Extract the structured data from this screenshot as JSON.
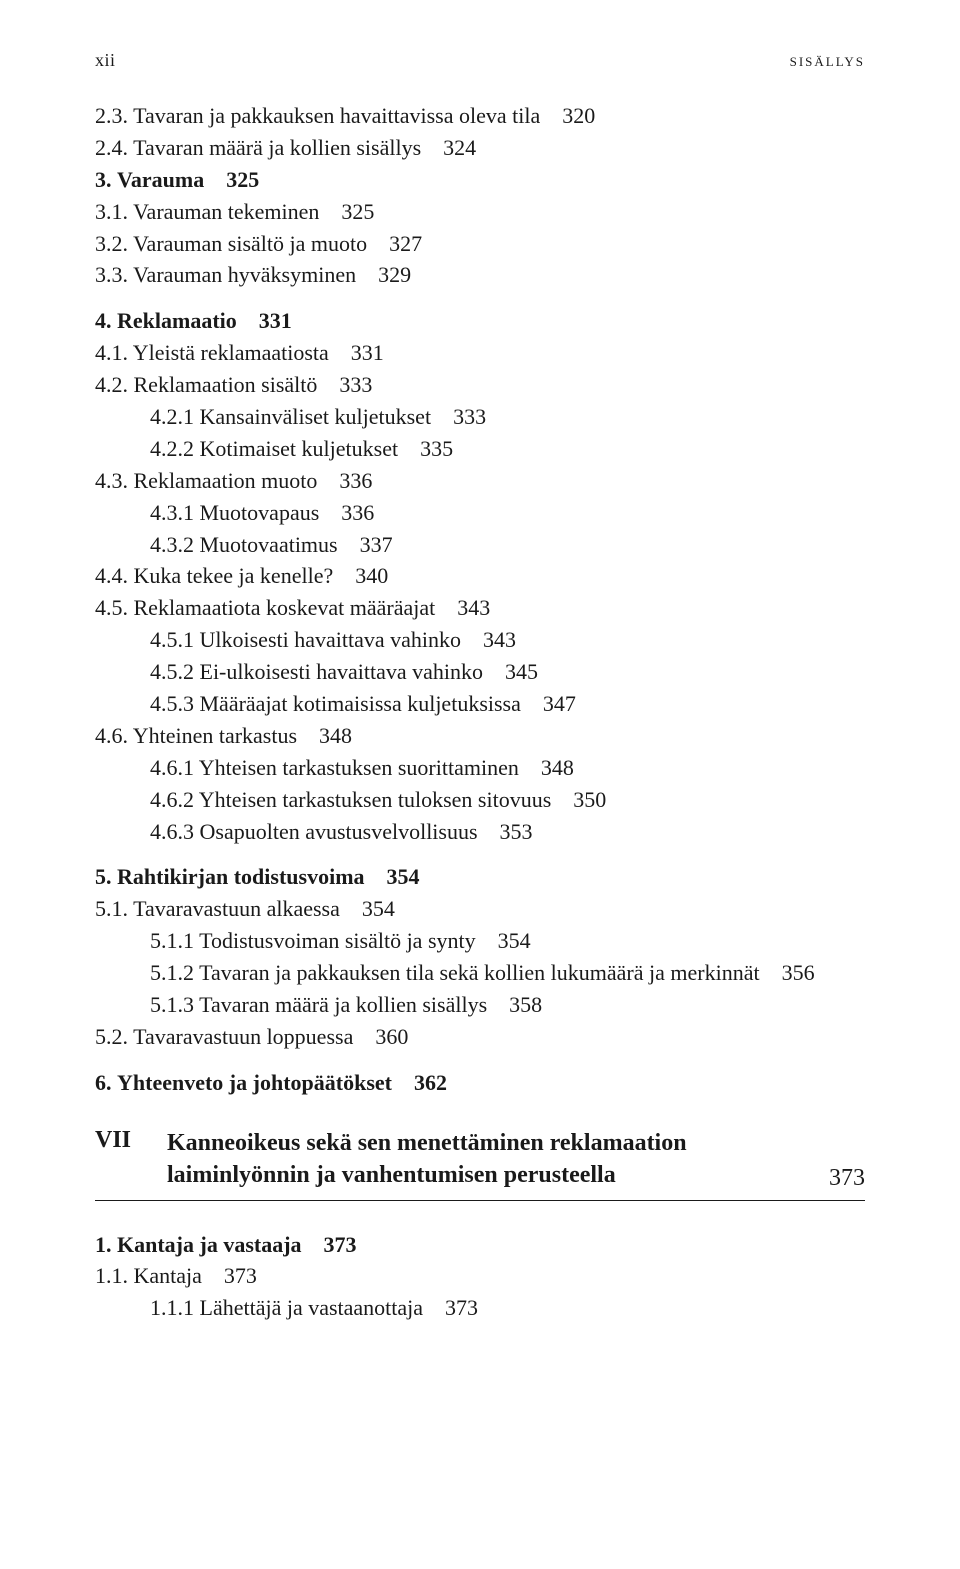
{
  "header": {
    "page_numeral": "xii",
    "section_label": "sisällys"
  },
  "entries": [
    {
      "indent": 1,
      "num": "2.3.",
      "text": "Tavaran ja pakkauksen havaittavissa oleva tila",
      "page": "320",
      "gap": false
    },
    {
      "indent": 1,
      "num": "2.4.",
      "text": "Tavaran määrä ja kollien sisällys",
      "page": "324",
      "gap": false
    },
    {
      "indent": 0,
      "num": "3.",
      "text": "Varauma",
      "page": "325",
      "gap": false,
      "bold": true
    },
    {
      "indent": 1,
      "num": "3.1.",
      "text": "Varauman tekeminen",
      "page": "325",
      "gap": false
    },
    {
      "indent": 1,
      "num": "3.2.",
      "text": "Varauman sisältö ja muoto",
      "page": "327",
      "gap": false
    },
    {
      "indent": 1,
      "num": "3.3.",
      "text": "Varauman hyväksyminen",
      "page": "329",
      "gap": false
    },
    {
      "indent": 0,
      "num": "4.",
      "text": "Reklamaatio",
      "page": "331",
      "gap": true,
      "bold": true
    },
    {
      "indent": 1,
      "num": "4.1.",
      "text": "Yleistä reklamaatiosta",
      "page": "331",
      "gap": false
    },
    {
      "indent": 1,
      "num": "4.2.",
      "text": "Reklamaation sisältö",
      "page": "333",
      "gap": false
    },
    {
      "indent": 2,
      "num": "4.2.1",
      "text": "Kansainväliset kuljetukset",
      "page": "333",
      "gap": false
    },
    {
      "indent": 2,
      "num": "4.2.2",
      "text": "Kotimaiset kuljetukset",
      "page": "335",
      "gap": false
    },
    {
      "indent": 1,
      "num": "4.3.",
      "text": "Reklamaation muoto",
      "page": "336",
      "gap": false
    },
    {
      "indent": 2,
      "num": "4.3.1",
      "text": "Muotovapaus",
      "page": "336",
      "gap": false
    },
    {
      "indent": 2,
      "num": "4.3.2",
      "text": "Muotovaatimus",
      "page": "337",
      "gap": false
    },
    {
      "indent": 1,
      "num": "4.4.",
      "text": "Kuka tekee ja kenelle?",
      "page": "340",
      "gap": false
    },
    {
      "indent": 1,
      "num": "4.5.",
      "text": "Reklamaatiota koskevat määräajat",
      "page": "343",
      "gap": false
    },
    {
      "indent": 2,
      "num": "4.5.1",
      "text": "Ulkoisesti havaittava vahinko",
      "page": "343",
      "gap": false
    },
    {
      "indent": 2,
      "num": "4.5.2",
      "text": "Ei-ulkoisesti havaittava vahinko",
      "page": "345",
      "gap": false
    },
    {
      "indent": 2,
      "num": "4.5.3",
      "text": "Määräajat kotimaisissa kuljetuksissa",
      "page": "347",
      "gap": false
    },
    {
      "indent": 1,
      "num": "4.6.",
      "text": "Yhteinen tarkastus",
      "page": "348",
      "gap": false
    },
    {
      "indent": 2,
      "num": "4.6.1",
      "text": "Yhteisen tarkastuksen suorittaminen",
      "page": "348",
      "gap": false
    },
    {
      "indent": 2,
      "num": "4.6.2",
      "text": "Yhteisen tarkastuksen tuloksen sitovuus",
      "page": "350",
      "gap": false
    },
    {
      "indent": 2,
      "num": "4.6.3",
      "text": "Osapuolten avustusvelvollisuus",
      "page": "353",
      "gap": false
    },
    {
      "indent": 0,
      "num": "5.",
      "text": "Rahtikirjan todistusvoima",
      "page": "354",
      "gap": true,
      "bold": true
    },
    {
      "indent": 1,
      "num": "5.1.",
      "text": "Tavaravastuun alkaessa",
      "page": "354",
      "gap": false
    },
    {
      "indent": 2,
      "num": "5.1.1",
      "text": "Todistusvoiman sisältö ja synty",
      "page": "354",
      "gap": false
    },
    {
      "indent": 2,
      "num": "5.1.2",
      "text": "Tavaran ja pakkauksen tila sekä kollien lukumäärä ja merkinnät",
      "page": "356",
      "gap": false
    },
    {
      "indent": 2,
      "num": "5.1.3",
      "text": "Tavaran määrä ja kollien sisällys",
      "page": "358",
      "gap": false
    },
    {
      "indent": 1,
      "num": "5.2.",
      "text": "Tavaravastuun loppuessa",
      "page": "360",
      "gap": false
    },
    {
      "indent": 0,
      "num": "6.",
      "text": "Yhteenveto ja johtopäätökset",
      "page": "362",
      "gap": true,
      "bold": true
    }
  ],
  "chapter": {
    "label": "VII",
    "title": "Kanneoikeus sekä sen menettäminen reklamaation laiminlyönnin ja vanhentumisen perusteella",
    "page": "373"
  },
  "entries_after": [
    {
      "indent": 0,
      "num": "1.",
      "text": "Kantaja ja vastaaja",
      "page": "373",
      "gap": false,
      "bold": true
    },
    {
      "indent": 1,
      "num": "1.1.",
      "text": "Kantaja",
      "page": "373",
      "gap": false
    },
    {
      "indent": 2,
      "num": "1.1.1",
      "text": "Lähettäjä ja vastaanottaja",
      "page": "373",
      "gap": false
    }
  ],
  "colors": {
    "text": "#1a1a1a",
    "background": "#ffffff",
    "rule": "#1a1a1a"
  },
  "typography": {
    "base_font_size_pt": 12,
    "line_height": 1.45,
    "heading_weight": "bold"
  }
}
